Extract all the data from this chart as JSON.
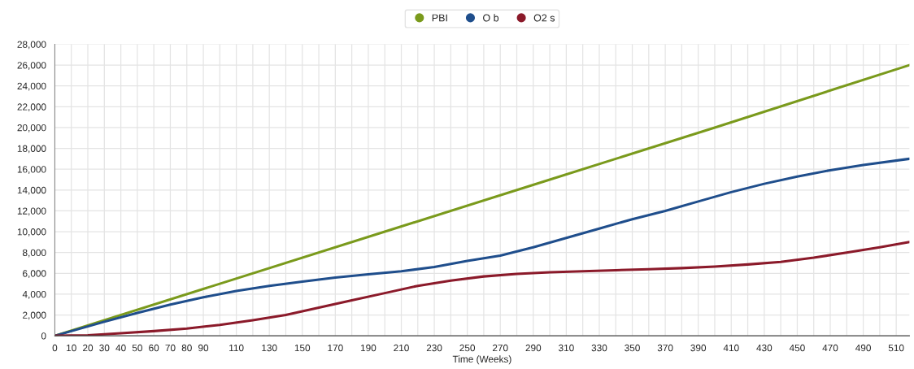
{
  "chart_data": {
    "type": "line",
    "xlabel": "Time (Weeks)",
    "x": [
      0,
      10,
      30,
      50,
      70,
      90,
      110,
      130,
      150,
      170,
      190,
      210,
      230,
      250,
      270,
      290,
      310,
      330,
      350,
      370,
      390,
      410,
      430,
      450,
      470,
      490,
      518
    ],
    "series": [
      {
        "name": "PBI",
        "color": "#7a9a1c",
        "x": [
          0,
          100,
          200,
          300,
          400,
          518
        ],
        "values": [
          0,
          5000,
          10000,
          15000,
          20000,
          26000
        ]
      },
      {
        "name": "O b",
        "color": "#1f4e8c",
        "values": [
          0,
          450,
          1350,
          2200,
          3000,
          3700,
          4300,
          4800,
          5200,
          5600,
          5900,
          6200,
          6600,
          7200,
          7700,
          8500,
          9400,
          10300,
          11200,
          12000,
          12900,
          13800,
          14600,
          15300,
          15900,
          16400,
          17000
        ]
      },
      {
        "name": "O2 s",
        "color": "#8b1a2a",
        "x": [
          0,
          20,
          40,
          60,
          80,
          100,
          120,
          140,
          160,
          180,
          200,
          220,
          240,
          260,
          280,
          300,
          320,
          340,
          360,
          380,
          400,
          420,
          440,
          460,
          480,
          500,
          518
        ],
        "values": [
          0,
          50,
          250,
          450,
          700,
          1050,
          1500,
          2000,
          2700,
          3400,
          4100,
          4800,
          5300,
          5700,
          5950,
          6100,
          6200,
          6300,
          6400,
          6500,
          6650,
          6850,
          7100,
          7500,
          8000,
          8500,
          9000
        ]
      }
    ],
    "xlim": [
      0,
      518
    ],
    "ylim": [
      0,
      28000
    ],
    "xticks": [
      0,
      10,
      20,
      30,
      40,
      50,
      60,
      70,
      80,
      90,
      {
        "value": 100,
        "label": null
      },
      110,
      {
        "value": 120,
        "label": null
      },
      130,
      {
        "value": 140,
        "label": null
      },
      150,
      {
        "value": 160,
        "label": null
      },
      170,
      {
        "value": 180,
        "label": null
      },
      190,
      {
        "value": 200,
        "label": null
      },
      210,
      {
        "value": 220,
        "label": null
      },
      230,
      {
        "value": 240,
        "label": null
      },
      250,
      {
        "value": 260,
        "label": null
      },
      270,
      {
        "value": 280,
        "label": null
      },
      290,
      {
        "value": 300,
        "label": null
      },
      310,
      {
        "value": 320,
        "label": null
      },
      330,
      {
        "value": 340,
        "label": null
      },
      350,
      {
        "value": 360,
        "label": null
      },
      370,
      {
        "value": 380,
        "label": null
      },
      390,
      {
        "value": 400,
        "label": null
      },
      410,
      {
        "value": 420,
        "label": null
      },
      430,
      {
        "value": 440,
        "label": null
      },
      450,
      {
        "value": 460,
        "label": null
      },
      470,
      {
        "value": 480,
        "label": null
      },
      490,
      {
        "value": 500,
        "label": null
      },
      510
    ],
    "yticks": [
      {
        "value": 0,
        "label": "0"
      },
      {
        "value": 2000,
        "label": "2,000"
      },
      {
        "value": 4000,
        "label": "4,000"
      },
      {
        "value": 6000,
        "label": "6,000"
      },
      {
        "value": 8000,
        "label": "8,000"
      },
      {
        "value": 10000,
        "label": "10,000"
      },
      {
        "value": 12000,
        "label": "12,000"
      },
      {
        "value": 14000,
        "label": "14,000"
      },
      {
        "value": 16000,
        "label": "16,000"
      },
      {
        "value": 18000,
        "label": "18,000"
      },
      {
        "value": 20000,
        "label": "20,000"
      },
      {
        "value": 22000,
        "label": "22,000"
      },
      {
        "value": 24000,
        "label": "24,000"
      },
      {
        "value": 26000,
        "label": "26,000"
      },
      {
        "value": 28000,
        "label": "28,000"
      }
    ],
    "grid": true,
    "legend": "top",
    "marker": "none",
    "line_style": "solid"
  }
}
